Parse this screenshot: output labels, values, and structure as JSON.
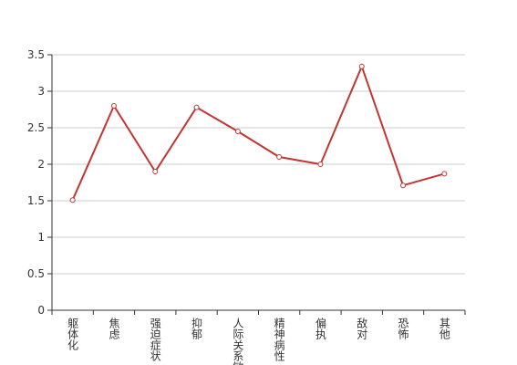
{
  "chart_data": {
    "type": "line",
    "categories": [
      "躯体化",
      "焦虑",
      "强迫症状",
      "抑郁",
      "人际关系敏感",
      "精神病性",
      "偏执",
      "敌对",
      "恐怖",
      "其他"
    ],
    "values": [
      1.51,
      2.8,
      1.9,
      2.78,
      2.45,
      2.1,
      2.0,
      3.34,
      1.71,
      1.87
    ],
    "color": "#c23531",
    "ylim": [
      0,
      3.5
    ],
    "yticks": [
      0,
      0.5,
      1,
      1.5,
      2,
      2.5,
      3,
      3.5
    ],
    "grid": true
  }
}
